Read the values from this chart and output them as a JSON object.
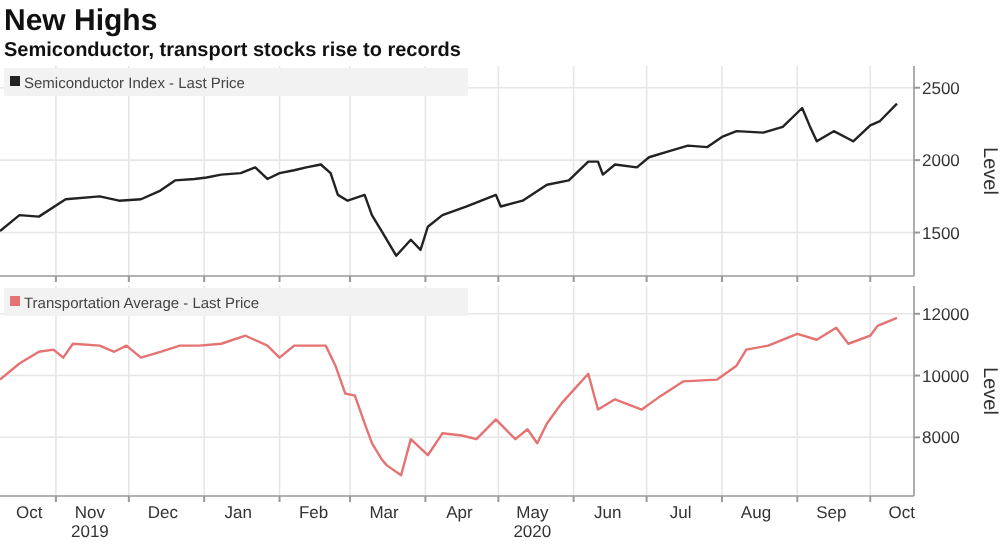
{
  "chart_data": [
    {
      "type": "line",
      "title": "New Highs",
      "subtitle": "Semiconductor, transport stocks rise to records",
      "ylabel": "Level",
      "xlim": [
        "2019-10-09",
        "2020-10-19"
      ],
      "ylim": [
        1200,
        2650
      ],
      "yticks": [
        1500,
        2000,
        2500
      ],
      "xticks": [
        {
          "value": "2019-11-01",
          "label": null
        },
        {
          "value": "2019-12-01",
          "label": null
        },
        {
          "value": "2020-01-01",
          "label": null
        },
        {
          "value": "2020-02-01",
          "label": null
        },
        {
          "value": "2020-03-01",
          "label": null
        },
        {
          "value": "2020-04-01",
          "label": null
        },
        {
          "value": "2020-05-01",
          "label": null
        },
        {
          "value": "2020-06-01",
          "label": null
        },
        {
          "value": "2020-07-01",
          "label": null
        },
        {
          "value": "2020-08-01",
          "label": null
        },
        {
          "value": "2020-09-01",
          "label": null
        },
        {
          "value": "2020-10-01",
          "label": null
        }
      ],
      "tick_labels": "y",
      "grid": true,
      "legend": "top left",
      "series": [
        {
          "name": "Semiconductor Index - Last Price",
          "color": "#222222",
          "x": [
            "2019-10-09",
            "2019-10-17",
            "2019-10-25",
            "2019-11-05",
            "2019-11-19",
            "2019-11-27",
            "2019-12-06",
            "2019-12-14",
            "2019-12-20",
            "2019-12-28",
            "2020-01-02",
            "2020-01-08",
            "2020-01-16",
            "2020-01-22",
            "2020-01-27",
            "2020-02-01",
            "2020-02-07",
            "2020-02-12",
            "2020-02-18",
            "2020-02-22",
            "2020-02-25",
            "2020-02-29",
            "2020-03-07",
            "2020-03-10",
            "2020-03-14",
            "2020-03-20",
            "2020-03-26",
            "2020-03-30",
            "2020-04-02",
            "2020-04-08",
            "2020-04-18",
            "2020-04-30",
            "2020-05-02",
            "2020-05-11",
            "2020-05-21",
            "2020-05-30",
            "2020-06-07",
            "2020-06-11",
            "2020-06-13",
            "2020-06-18",
            "2020-06-27",
            "2020-07-02",
            "2020-07-10",
            "2020-07-18",
            "2020-07-26",
            "2020-08-01",
            "2020-08-07",
            "2020-08-18",
            "2020-08-26",
            "2020-09-03",
            "2020-09-06",
            "2020-09-09",
            "2020-09-16",
            "2020-09-24",
            "2020-10-01",
            "2020-10-05",
            "2020-10-12"
          ],
          "values": [
            1510,
            1620,
            1610,
            1730,
            1750,
            1720,
            1730,
            1790,
            1860,
            1870,
            1880,
            1900,
            1910,
            1950,
            1870,
            1910,
            1930,
            1950,
            1970,
            1910,
            1760,
            1720,
            1760,
            1620,
            1510,
            1340,
            1450,
            1380,
            1540,
            1620,
            1680,
            1760,
            1680,
            1720,
            1830,
            1860,
            1990,
            1990,
            1900,
            1970,
            1950,
            2020,
            2060,
            2100,
            2090,
            2160,
            2200,
            2190,
            2230,
            2360,
            2240,
            2130,
            2200,
            2130,
            2240,
            2270,
            2390
          ]
        }
      ]
    },
    {
      "type": "line",
      "ylabel": "Level",
      "xlim": [
        "2019-10-09",
        "2020-10-19"
      ],
      "ylim": [
        6100,
        12900
      ],
      "yticks": [
        8000,
        10000,
        12000
      ],
      "xticks": [
        {
          "value": "2019-10-21",
          "label": "Oct"
        },
        {
          "value": "2019-11-01",
          "label": null
        },
        {
          "value": "2019-11-15",
          "label": "Nov\n2019"
        },
        {
          "value": "2019-12-01",
          "label": null
        },
        {
          "value": "2019-12-15",
          "label": "Dec"
        },
        {
          "value": "2020-01-01",
          "label": null
        },
        {
          "value": "2020-01-15",
          "label": "Jan"
        },
        {
          "value": "2020-02-01",
          "label": null
        },
        {
          "value": "2020-02-15",
          "label": "Feb"
        },
        {
          "value": "2020-03-01",
          "label": null
        },
        {
          "value": "2020-03-15",
          "label": "Mar"
        },
        {
          "value": "2020-04-01",
          "label": null
        },
        {
          "value": "2020-04-15",
          "label": "Apr"
        },
        {
          "value": "2020-05-01",
          "label": null
        },
        {
          "value": "2020-05-15",
          "label": "May\n2020"
        },
        {
          "value": "2020-06-01",
          "label": null
        },
        {
          "value": "2020-06-15",
          "label": "Jun"
        },
        {
          "value": "2020-07-01",
          "label": null
        },
        {
          "value": "2020-07-15",
          "label": "Jul"
        },
        {
          "value": "2020-08-01",
          "label": null
        },
        {
          "value": "2020-08-15",
          "label": "Aug"
        },
        {
          "value": "2020-09-01",
          "label": null
        },
        {
          "value": "2020-09-15",
          "label": "Sep"
        },
        {
          "value": "2020-10-01",
          "label": null
        },
        {
          "value": "2020-10-14",
          "label": "Oct"
        }
      ],
      "grid": true,
      "legend": "top left",
      "series": [
        {
          "name": "Transportation Average - Last Price",
          "color": "#e57373",
          "x": [
            "2019-10-09",
            "2019-10-17",
            "2019-10-25",
            "2019-10-31",
            "2019-11-04",
            "2019-11-08",
            "2019-11-19",
            "2019-11-25",
            "2019-11-30",
            "2019-12-06",
            "2019-12-14",
            "2019-12-22",
            "2019-12-30",
            "2020-01-08",
            "2020-01-18",
            "2020-01-27",
            "2020-02-01",
            "2020-02-07",
            "2020-02-15",
            "2020-02-20",
            "2020-02-24",
            "2020-02-28",
            "2020-03-03",
            "2020-03-07",
            "2020-03-10",
            "2020-03-14",
            "2020-03-16",
            "2020-03-22",
            "2020-03-26",
            "2020-04-02",
            "2020-04-08",
            "2020-04-16",
            "2020-04-22",
            "2020-04-30",
            "2020-05-08",
            "2020-05-13",
            "2020-05-17",
            "2020-05-21",
            "2020-05-27",
            "2020-06-07",
            "2020-06-11",
            "2020-06-18",
            "2020-06-29",
            "2020-07-07",
            "2020-07-16",
            "2020-07-30",
            "2020-08-07",
            "2020-08-11",
            "2020-08-20",
            "2020-09-01",
            "2020-09-09",
            "2020-09-17",
            "2020-09-22",
            "2020-10-01",
            "2020-10-04",
            "2020-10-12"
          ],
          "values": [
            9870,
            10390,
            10770,
            10840,
            10580,
            11030,
            10970,
            10770,
            10970,
            10580,
            10770,
            10970,
            10970,
            11030,
            11290,
            10970,
            10580,
            10970,
            10970,
            10970,
            10320,
            9420,
            9350,
            8450,
            7810,
            7290,
            7100,
            6770,
            7940,
            7420,
            8130,
            8060,
            7940,
            8580,
            7940,
            8260,
            7810,
            8450,
            9100,
            10060,
            8900,
            9230,
            8900,
            9350,
            9810,
            9870,
            10320,
            10840,
            10970,
            11350,
            11160,
            11550,
            11030,
            11290,
            11610,
            11870
          ]
        }
      ]
    }
  ]
}
